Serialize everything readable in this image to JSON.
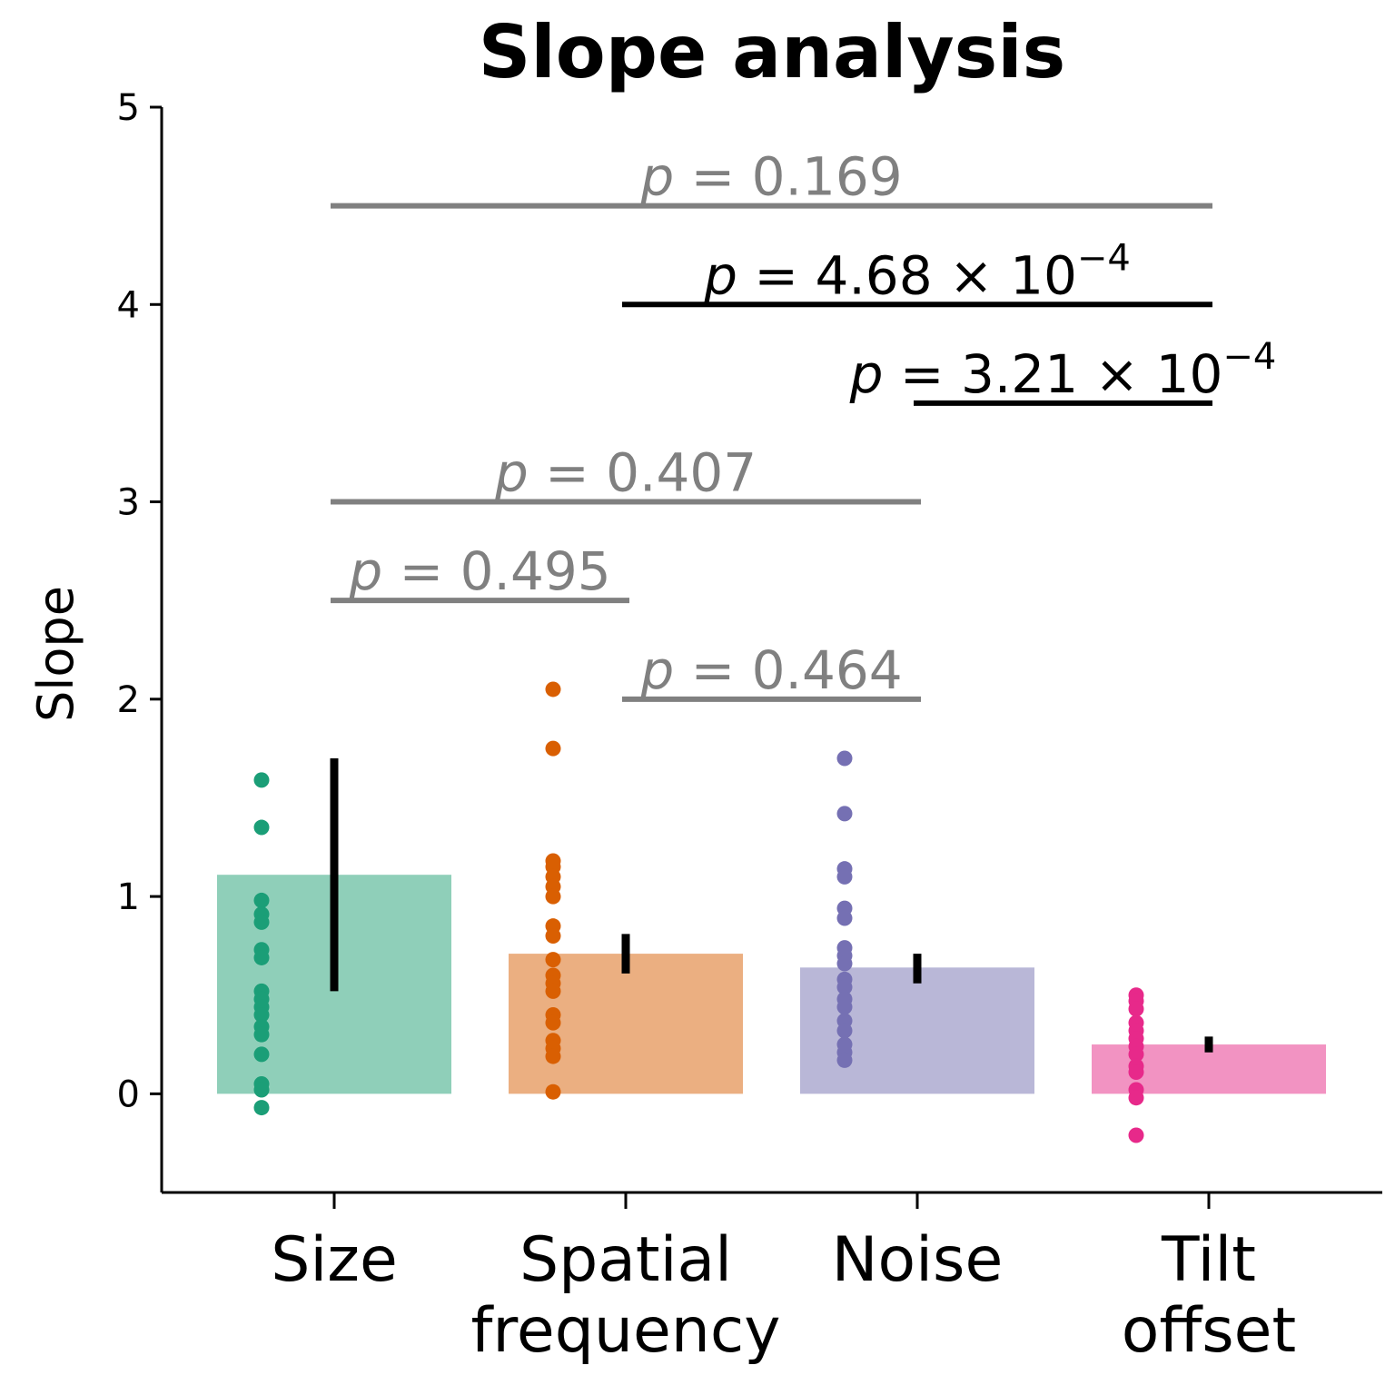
{
  "chart_data": {
    "type": "bar",
    "title": "Slope analysis",
    "xlabel": "",
    "ylabel": "Slope",
    "ylim": [
      -0.5,
      5
    ],
    "yticks": [
      "0",
      "1",
      "2",
      "3",
      "4",
      "5"
    ],
    "categories": [
      [
        "Size"
      ],
      [
        "Spatial",
        "frequency"
      ],
      [
        "Noise"
      ],
      [
        "Tilt",
        "offset"
      ]
    ],
    "values": [
      1.11,
      0.71,
      0.64,
      0.25
    ],
    "error_bars": [
      [
        0.52,
        1.7
      ],
      [
        0.61,
        0.81
      ],
      [
        0.56,
        0.71
      ],
      [
        0.21,
        0.29
      ]
    ],
    "bar_colors": [
      "#8fcfb9",
      "#ebaf81",
      "#b9b7d7",
      "#f293c2"
    ],
    "point_colors": [
      "#1b9e77",
      "#d95f02",
      "#7570b3",
      "#e7298a"
    ],
    "points": [
      [
        1.59,
        1.35,
        0.98,
        0.91,
        0.87,
        0.73,
        0.69,
        0.52,
        0.48,
        0.44,
        0.4,
        0.34,
        0.3,
        0.2,
        0.05,
        0.02,
        -0.07
      ],
      [
        2.05,
        1.75,
        1.18,
        1.15,
        1.1,
        1.05,
        1.0,
        0.85,
        0.8,
        0.68,
        0.6,
        0.56,
        0.52,
        0.4,
        0.36,
        0.27,
        0.23,
        0.19,
        0.01
      ],
      [
        1.7,
        1.42,
        1.14,
        1.1,
        0.94,
        0.89,
        0.74,
        0.7,
        0.66,
        0.58,
        0.54,
        0.48,
        0.44,
        0.37,
        0.32,
        0.25,
        0.21,
        0.17
      ],
      [
        0.5,
        0.47,
        0.43,
        0.36,
        0.32,
        0.28,
        0.24,
        0.2,
        0.14,
        0.11,
        0.02,
        -0.02,
        -0.21
      ]
    ],
    "comparisons": [
      {
        "from": 0,
        "to": 3,
        "y": 4.5,
        "label": "0.169",
        "significant": false
      },
      {
        "from": 1,
        "to": 3,
        "y": 4.0,
        "label": "4.68",
        "exp": "−4",
        "significant": true
      },
      {
        "from": 2,
        "to": 3,
        "y": 3.5,
        "label": "3.21",
        "exp": "−4",
        "significant": true
      },
      {
        "from": 0,
        "to": 2,
        "y": 3.0,
        "label": "0.407",
        "significant": false
      },
      {
        "from": 0,
        "to": 1,
        "y": 2.5,
        "label": "0.495",
        "significant": false
      },
      {
        "from": 1,
        "to": 2,
        "y": 2.0,
        "label": "0.464",
        "significant": false
      }
    ],
    "comparison_colors": {
      "significant": "#000000",
      "not_significant": "#808080"
    },
    "p_prefix": "p",
    "p_equals": " = ",
    "p_times": " × 10",
    "grid": false,
    "legend": "none"
  }
}
